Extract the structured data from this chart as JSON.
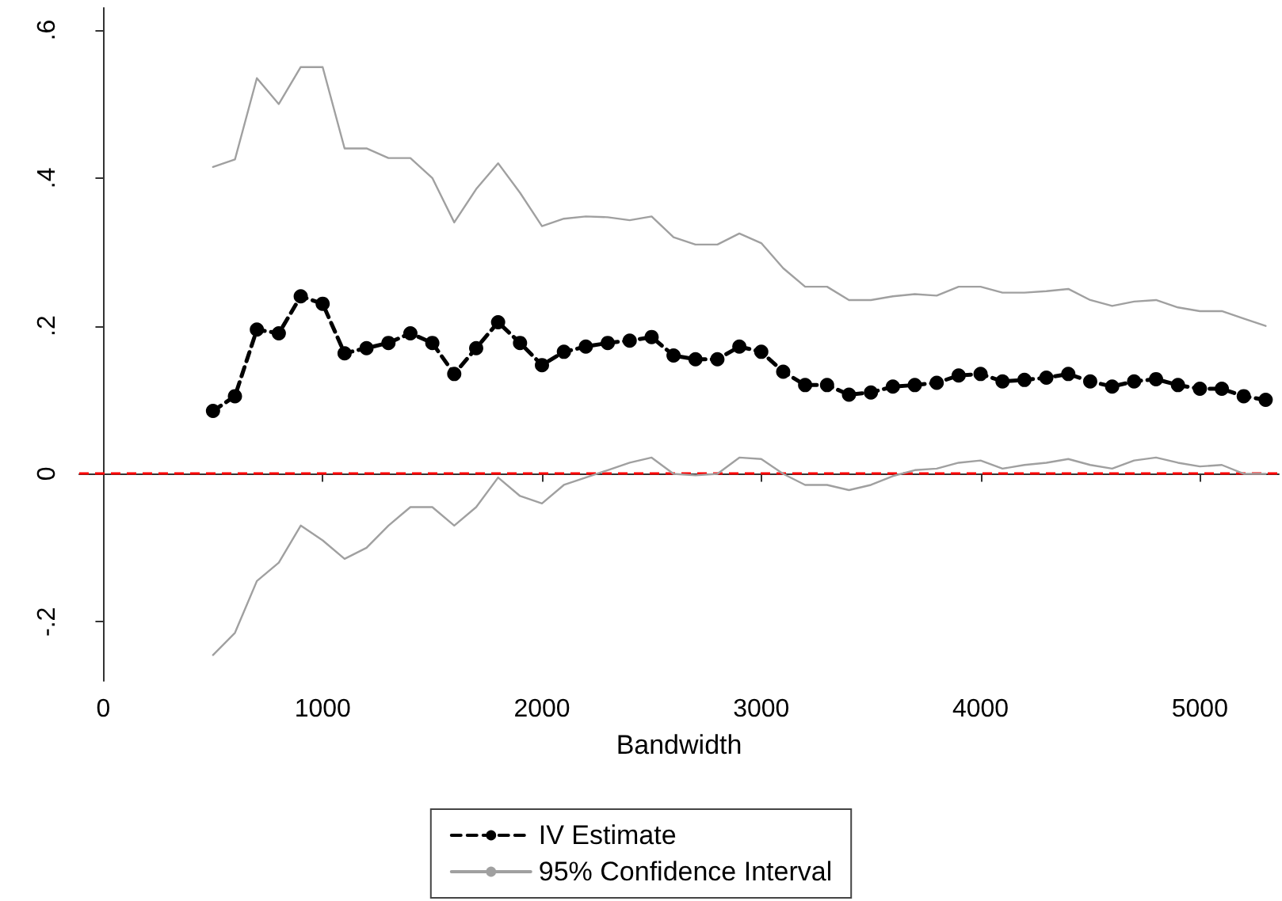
{
  "chart_data": {
    "type": "line",
    "xlabel": "Bandwidth",
    "x": [
      500,
      600,
      700,
      800,
      900,
      1000,
      1100,
      1200,
      1300,
      1400,
      1500,
      1600,
      1700,
      1800,
      1900,
      2000,
      2100,
      2200,
      2300,
      2400,
      2500,
      2600,
      2700,
      2800,
      2900,
      3000,
      3100,
      3200,
      3300,
      3400,
      3500,
      3600,
      3700,
      3800,
      3900,
      4000,
      4100,
      4200,
      4300,
      4400,
      4500,
      4600,
      4700,
      4800,
      4900,
      5000,
      5100,
      5200,
      5300
    ],
    "series": [
      {
        "name": "IV Estimate",
        "color": "#000000",
        "marker": "circle",
        "line_style": "dashed",
        "values": [
          0.085,
          0.105,
          0.195,
          0.19,
          0.24,
          0.23,
          0.163,
          0.17,
          0.177,
          0.19,
          0.177,
          0.135,
          0.17,
          0.205,
          0.177,
          0.147,
          0.165,
          0.172,
          0.177,
          0.18,
          0.185,
          0.16,
          0.155,
          0.155,
          0.172,
          0.165,
          0.138,
          0.12,
          0.12,
          0.107,
          0.11,
          0.118,
          0.12,
          0.123,
          0.133,
          0.135,
          0.125,
          0.127,
          0.13,
          0.135,
          0.125,
          0.118,
          0.125,
          0.128,
          0.12,
          0.115,
          0.115,
          0.105,
          0.1
        ]
      },
      {
        "name": "95% Confidence Interval",
        "color": "#a0a0a0",
        "marker": "none",
        "line_style": "solid",
        "values": [
          0.415,
          0.425,
          0.535,
          0.5,
          0.55,
          0.55,
          0.44,
          0.44,
          0.427,
          0.427,
          0.4,
          0.34,
          0.385,
          0.42,
          0.38,
          0.335,
          0.345,
          0.348,
          0.347,
          0.343,
          0.348,
          0.32,
          0.31,
          0.31,
          0.325,
          0.312,
          0.278,
          0.253,
          0.253,
          0.235,
          0.235,
          0.24,
          0.243,
          0.241,
          0.253,
          0.253,
          0.245,
          0.245,
          0.247,
          0.25,
          0.235,
          0.227,
          0.233,
          0.235,
          0.225,
          0.22,
          0.22,
          0.21,
          0.2
        ]
      },
      {
        "color": "#a0a0a0",
        "marker": "none",
        "line_style": "solid",
        "values": [
          -0.245,
          -0.215,
          -0.145,
          -0.12,
          -0.07,
          -0.09,
          -0.115,
          -0.1,
          -0.07,
          -0.045,
          -0.045,
          -0.07,
          -0.045,
          -0.005,
          -0.03,
          -0.04,
          -0.015,
          -0.005,
          0.005,
          0.015,
          0.022,
          0,
          -0.002,
          0,
          0.022,
          0.02,
          0,
          -0.015,
          -0.015,
          -0.022,
          -0.015,
          -0.003,
          0.005,
          0.007,
          0.015,
          0.018,
          0.007,
          0.012,
          0.015,
          0.02,
          0.012,
          0.007,
          0.018,
          0.022,
          0.015,
          0.01,
          0.012,
          0,
          0
        ]
      }
    ],
    "xlim": [
      -110,
      5360
    ],
    "xticks": [
      0,
      1000,
      2000,
      3000,
      4000,
      5000
    ],
    "ylim": [
      -0.28,
      0.63
    ],
    "yticks": [
      {
        "value": -0.2,
        "label": "-.2"
      },
      {
        "value": 0,
        "label": "0"
      },
      {
        "value": 0.2,
        "label": ".2"
      },
      {
        "value": 0.4,
        "label": ".4"
      },
      {
        "value": 0.6,
        "label": ".6"
      }
    ],
    "ref_lines": [
      {
        "axis": "y",
        "value": 0,
        "color": "#ff0000",
        "line_style": "dashed"
      }
    ],
    "grid": false,
    "legend": "bottom"
  }
}
